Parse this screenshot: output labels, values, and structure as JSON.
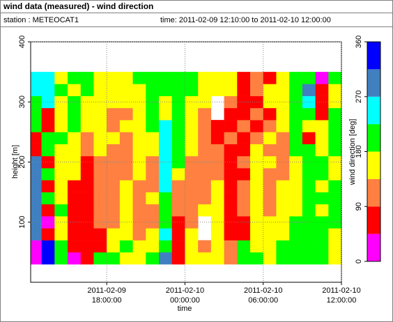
{
  "chart_data": {
    "type": "heatmap",
    "title": "wind data (measured) - wind direction",
    "station": "station : METEOCAT1",
    "time_range": "time: 2011-02-09 12:10:00 to 2011-02-10 12:00:00",
    "xlabel": "time",
    "ylabel": "height [m]",
    "xlim": [
      "2011-02-09 12:10:00",
      "2011-02-10 12:00:00"
    ],
    "ylim": [
      0,
      400
    ],
    "xticks": [
      "2011-02-09 18:00:00",
      "2011-02-10 00:00:00",
      "2011-02-10 06:00:00",
      "2011-02-10 12:00:00"
    ],
    "yticks": [
      100,
      200,
      300,
      400
    ],
    "grid": true,
    "x": [
      "2011-02-09 12:30:00",
      "2011-02-09 13:30:00",
      "2011-02-09 14:30:00",
      "2011-02-09 15:30:00",
      "2011-02-09 16:30:00",
      "2011-02-09 17:30:00",
      "2011-02-09 18:30:00",
      "2011-02-09 19:30:00",
      "2011-02-09 20:30:00",
      "2011-02-09 21:30:00",
      "2011-02-09 22:30:00",
      "2011-02-09 23:30:00",
      "2011-02-10 00:30:00",
      "2011-02-10 01:30:00",
      "2011-02-10 02:30:00",
      "2011-02-10 03:30:00",
      "2011-02-10 04:30:00",
      "2011-02-10 05:30:00",
      "2011-02-10 06:30:00",
      "2011-02-10 07:30:00",
      "2011-02-10 08:30:00",
      "2011-02-10 09:30:00",
      "2011-02-10 10:30:00",
      "2011-02-10 11:30:00"
    ],
    "y": [
      40,
      60,
      80,
      100,
      120,
      140,
      160,
      180,
      200,
      220,
      240,
      260,
      280,
      300,
      320,
      340
    ],
    "z": [
      [
        20,
        340,
        200,
        20,
        60,
        200,
        200,
        160,
        160,
        200,
        300,
        70,
        160,
        160,
        160,
        120,
        200,
        200,
        160,
        200,
        200,
        200,
        200,
        160
      ],
      [
        20,
        340,
        200,
        60,
        70,
        70,
        160,
        200,
        160,
        160,
        200,
        70,
        160,
        120,
        160,
        120,
        200,
        160,
        160,
        200,
        200,
        200,
        200,
        160
      ],
      [
        300,
        60,
        160,
        70,
        60,
        70,
        160,
        160,
        120,
        160,
        240,
        60,
        160,
        null,
        160,
        70,
        70,
        160,
        160,
        160,
        200,
        200,
        200,
        160
      ],
      [
        300,
        20,
        160,
        70,
        70,
        120,
        120,
        160,
        120,
        120,
        200,
        70,
        120,
        null,
        160,
        70,
        70,
        160,
        160,
        160,
        200,
        200,
        200,
        200
      ],
      [
        290,
        60,
        200,
        70,
        60,
        120,
        120,
        160,
        120,
        120,
        200,
        120,
        120,
        160,
        160,
        70,
        120,
        160,
        120,
        160,
        160,
        200,
        160,
        200
      ],
      [
        290,
        200,
        160,
        70,
        70,
        120,
        120,
        160,
        120,
        160,
        200,
        120,
        120,
        120,
        160,
        70,
        120,
        160,
        120,
        160,
        160,
        200,
        200,
        200
      ],
      [
        290,
        70,
        160,
        70,
        70,
        120,
        120,
        160,
        120,
        120,
        250,
        120,
        120,
        120,
        160,
        70,
        120,
        160,
        120,
        160,
        160,
        200,
        160,
        200
      ],
      [
        290,
        200,
        160,
        160,
        70,
        120,
        120,
        120,
        160,
        120,
        250,
        160,
        120,
        120,
        120,
        70,
        70,
        160,
        120,
        120,
        160,
        200,
        200,
        160
      ],
      [
        300,
        70,
        160,
        160,
        70,
        120,
        120,
        120,
        160,
        120,
        250,
        200,
        120,
        120,
        120,
        70,
        120,
        160,
        160,
        120,
        160,
        200,
        200,
        160
      ],
      [
        60,
        200,
        160,
        160,
        120,
        160,
        120,
        120,
        160,
        160,
        240,
        200,
        160,
        120,
        120,
        70,
        70,
        160,
        120,
        120,
        200,
        200,
        160,
        200
      ],
      [
        60,
        200,
        200,
        160,
        120,
        160,
        160,
        120,
        160,
        160,
        240,
        200,
        160,
        120,
        70,
        120,
        70,
        120,
        160,
        120,
        200,
        70,
        160,
        200
      ],
      [
        200,
        60,
        160,
        200,
        160,
        160,
        120,
        160,
        160,
        200,
        240,
        200,
        160,
        120,
        70,
        70,
        120,
        70,
        120,
        160,
        200,
        160,
        160,
        200
      ],
      [
        200,
        70,
        160,
        200,
        160,
        160,
        120,
        120,
        160,
        200,
        160,
        200,
        160,
        120,
        null,
        70,
        70,
        120,
        70,
        160,
        200,
        200,
        70,
        200
      ],
      [
        200,
        240,
        160,
        200,
        160,
        160,
        160,
        160,
        160,
        200,
        160,
        200,
        160,
        160,
        null,
        120,
        70,
        70,
        160,
        160,
        200,
        240,
        60,
        160
      ],
      [
        240,
        250,
        200,
        160,
        200,
        160,
        160,
        160,
        160,
        200,
        200,
        200,
        200,
        160,
        160,
        160,
        70,
        120,
        160,
        160,
        200,
        300,
        60,
        160
      ],
      [
        240,
        250,
        160,
        200,
        200,
        160,
        160,
        160,
        200,
        200,
        200,
        200,
        200,
        160,
        160,
        160,
        70,
        120,
        70,
        160,
        200,
        200,
        20,
        200
      ]
    ],
    "colorbar": {
      "label": "wind direction [deg]",
      "bins": [
        0,
        45,
        90,
        135,
        180,
        225,
        270,
        315,
        360
      ],
      "colors": [
        "#ff00ff",
        "#ff0000",
        "#ff8040",
        "#ffff00",
        "#00ff00",
        "#00ffff",
        "#4080c0",
        "#0000ff"
      ],
      "ticks": [
        0,
        90,
        180,
        270,
        360
      ]
    }
  }
}
